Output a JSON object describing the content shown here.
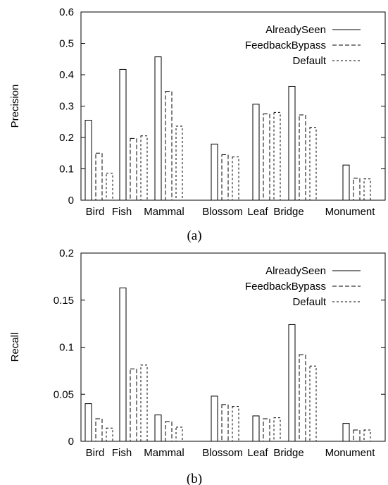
{
  "chart_data": [
    {
      "type": "bar",
      "caption": "(a)",
      "ylabel": "Precision",
      "xlabel": "",
      "ylim": [
        0,
        0.6
      ],
      "yticks": [
        "0",
        "0.1",
        "0.2",
        "0.3",
        "0.4",
        "0.5",
        "0.6"
      ],
      "categories": [
        "Bird",
        "Fish",
        "Mammal",
        "Blossom",
        "Leaf",
        "Bridge",
        "Monument"
      ],
      "legend_position": "top-right",
      "series": [
        {
          "name": "AlreadySeen",
          "style": "solid",
          "values": [
            0.255,
            0.417,
            0.457,
            0.179,
            0.306,
            0.363,
            0.112
          ]
        },
        {
          "name": "FeedbackBypass",
          "style": "dashed",
          "values": [
            0.15,
            0.197,
            0.347,
            0.145,
            0.275,
            0.272,
            0.07
          ]
        },
        {
          "name": "Default",
          "style": "dotted",
          "values": [
            0.086,
            0.205,
            0.236,
            0.138,
            0.28,
            0.232,
            0.068
          ]
        }
      ]
    },
    {
      "type": "bar",
      "caption": "(b)",
      "ylabel": "Recall",
      "xlabel": "",
      "ylim": [
        0,
        0.2
      ],
      "yticks": [
        "0",
        "0.05",
        "0.1",
        "0.15",
        "0.2"
      ],
      "categories": [
        "Bird",
        "Fish",
        "Mammal",
        "Blossom",
        "Leaf",
        "Bridge",
        "Monument"
      ],
      "legend_position": "top-right",
      "series": [
        {
          "name": "AlreadySeen",
          "style": "solid",
          "values": [
            0.04,
            0.163,
            0.028,
            0.048,
            0.027,
            0.124,
            0.019
          ]
        },
        {
          "name": "FeedbackBypass",
          "style": "dashed",
          "values": [
            0.024,
            0.077,
            0.021,
            0.039,
            0.024,
            0.092,
            0.012
          ]
        },
        {
          "name": "Default",
          "style": "dotted",
          "values": [
            0.014,
            0.081,
            0.015,
            0.037,
            0.025,
            0.08,
            0.012
          ]
        }
      ]
    }
  ]
}
